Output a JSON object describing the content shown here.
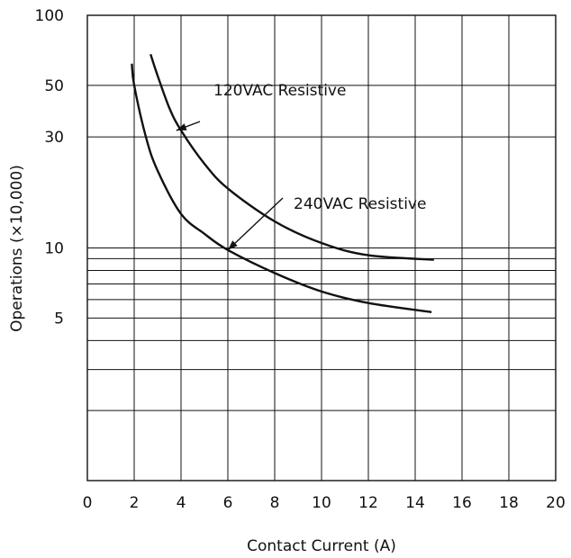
{
  "chart_data": {
    "type": "line",
    "xlabel": "Contact Current (A)",
    "ylabel": "Operations (×10,000)",
    "xlim": [
      0,
      20
    ],
    "ylim": [
      1,
      100
    ],
    "y_scale": "log",
    "x_ticks": [
      "0",
      "2",
      "4",
      "6",
      "8",
      "10",
      "12",
      "14",
      "16",
      "18",
      "20"
    ],
    "y_ticks": [
      {
        "value": 100,
        "label": "100"
      },
      {
        "value": 50,
        "label": "50"
      },
      {
        "value": 30,
        "label": "30"
      },
      {
        "value": 10,
        "label": "10"
      },
      {
        "value": 5,
        "label": "5"
      }
    ],
    "grid": true,
    "series": [
      {
        "name": "120VAC Resistive",
        "x": [
          2.7,
          3.0,
          3.5,
          4.0,
          5.0,
          6.0,
          8.0,
          10.0,
          12.0,
          14.8
        ],
        "y": [
          68,
          55,
          40,
          32,
          23,
          18,
          13,
          10.5,
          9.3,
          8.9
        ]
      },
      {
        "name": "240VAC Resistive",
        "x": [
          1.9,
          2.0,
          2.5,
          3.0,
          4.0,
          5.0,
          6.0,
          8.0,
          10.0,
          12.0,
          14.7
        ],
        "y": [
          62,
          50,
          30,
          21.5,
          14,
          11.5,
          9.8,
          7.8,
          6.5,
          5.8,
          5.3
        ]
      }
    ],
    "annotations": [
      {
        "text": "120VAC Resistive",
        "target": [
          3.8,
          32
        ]
      },
      {
        "text": "240VAC Resistive",
        "target": [
          6.0,
          9.8
        ]
      }
    ]
  }
}
